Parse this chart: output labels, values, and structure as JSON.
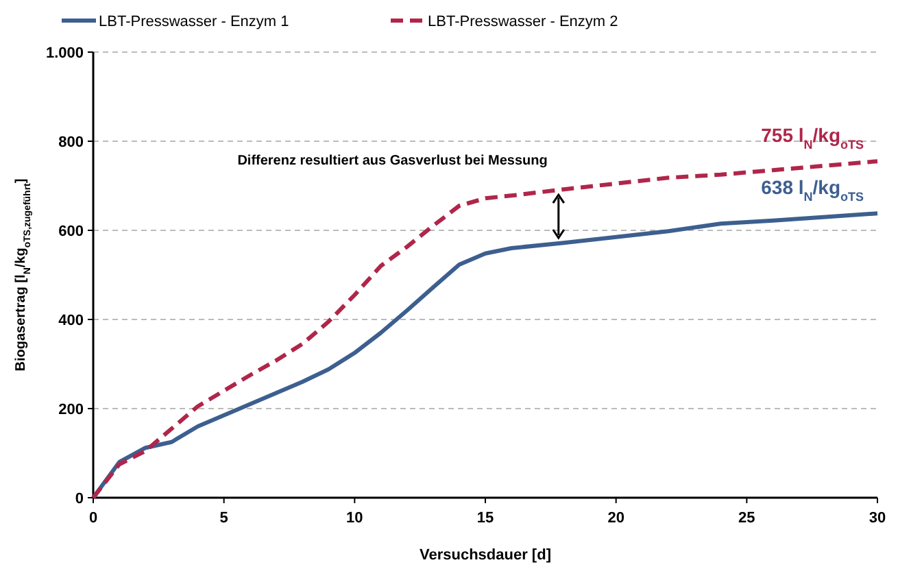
{
  "chart_data": {
    "type": "line",
    "xlabel": "Versuchsdauer [d]",
    "ylabel": "Biogasertrag [l$_{N}$/kg$_{oTS,zugeführt}$]",
    "xlim": [
      0,
      30
    ],
    "xticks": [
      0,
      5,
      10,
      15,
      20,
      25,
      30
    ],
    "ylim": [
      0,
      1000
    ],
    "yticks": [
      0,
      200,
      400,
      600,
      800,
      {
        "value": 1000,
        "label": "1.000"
      }
    ],
    "grid": "y",
    "legend": "top",
    "marker": "none",
    "series": [
      {
        "name": "LBT-Presswasser - Enzym 1",
        "color": "#3d5f8f",
        "line_style": "solid",
        "x": [
          0,
          1,
          2,
          3,
          4,
          5,
          6,
          7,
          8,
          9,
          10,
          11,
          12,
          13,
          14,
          15,
          16,
          18,
          20,
          22,
          24,
          26,
          28,
          30
        ],
        "values": [
          0,
          80,
          112,
          125,
          160,
          185,
          210,
          235,
          260,
          288,
          325,
          370,
          420,
          472,
          523,
          548,
          560,
          572,
          585,
          598,
          615,
          622,
          630,
          638
        ]
      },
      {
        "name": "LBT-Presswasser - Enzym 2",
        "color": "#b0264a",
        "line_style": "dashed",
        "x": [
          0,
          1,
          2,
          3,
          4,
          5,
          6,
          7,
          8,
          9,
          10,
          11,
          12,
          13,
          14,
          15,
          16,
          18,
          20,
          22,
          24,
          26,
          28,
          30
        ],
        "values": [
          0,
          75,
          105,
          155,
          205,
          240,
          275,
          308,
          345,
          395,
          455,
          520,
          563,
          610,
          655,
          672,
          678,
          692,
          705,
          718,
          725,
          735,
          745,
          755
        ]
      }
    ],
    "annotations": [
      "638 l$_{N}$/kg$_{oTS}$",
      "755 l$_{N}$/kg$_{oTS}$",
      {
        "text": "Differenz resultiert aus Gasverlust bei Messung",
        "x": 17.8,
        "y": 692
      }
    ]
  }
}
